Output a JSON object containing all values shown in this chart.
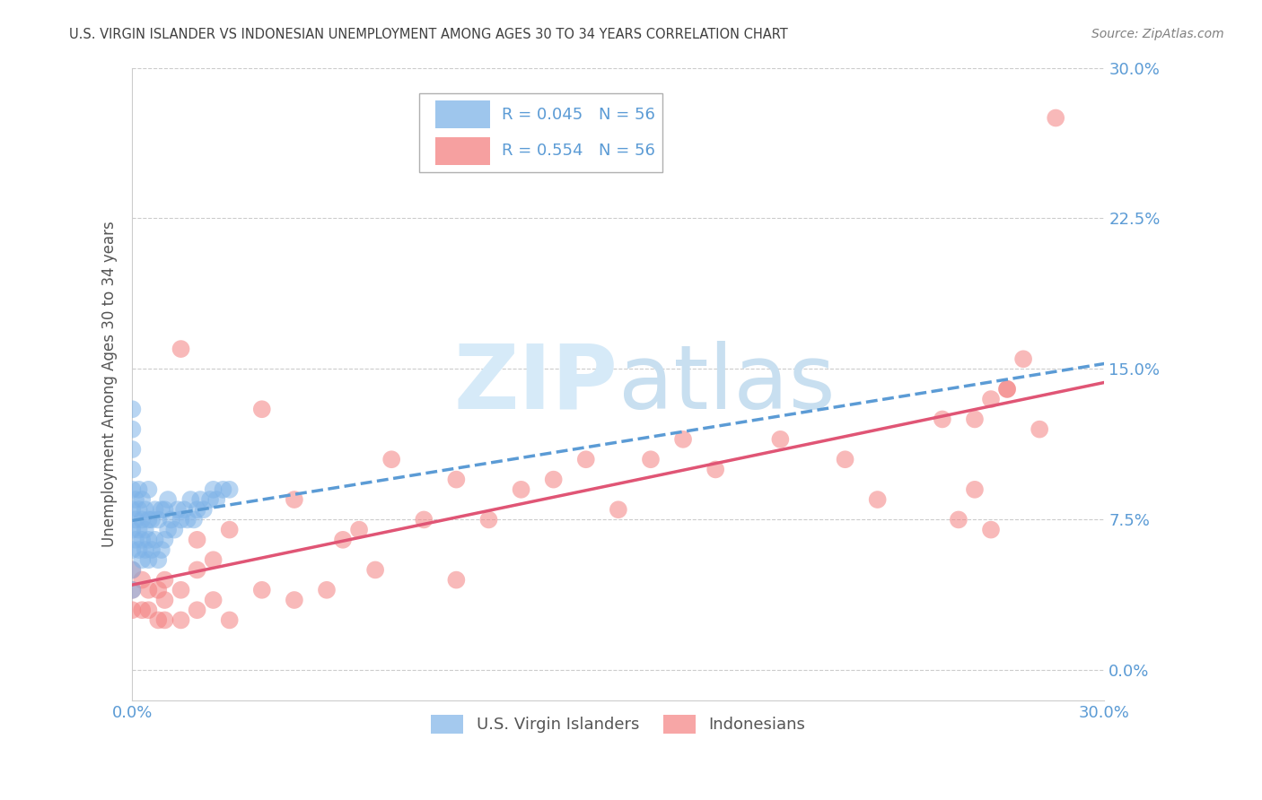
{
  "title": "U.S. VIRGIN ISLANDER VS INDONESIAN UNEMPLOYMENT AMONG AGES 30 TO 34 YEARS CORRELATION CHART",
  "source": "Source: ZipAtlas.com",
  "ylabel": "Unemployment Among Ages 30 to 34 years",
  "x_min": 0.0,
  "x_max": 0.3,
  "y_min": -0.015,
  "y_max": 0.3,
  "y_ticks": [
    0.0,
    0.075,
    0.15,
    0.225,
    0.3
  ],
  "y_tick_labels": [
    "0.0%",
    "7.5%",
    "15.0%",
    "22.5%",
    "30.0%"
  ],
  "x_tick_labels": [
    "0.0%",
    "30.0%"
  ],
  "grid_color": "#cccccc",
  "background_color": "#ffffff",
  "virgin_islander_color": "#7eb3e8",
  "indonesian_color": "#f48080",
  "virgin_islander_R": 0.045,
  "virgin_islander_N": 56,
  "indonesian_R": 0.554,
  "indonesian_N": 56,
  "legend_label_vi": "U.S. Virgin Islanders",
  "legend_label_indo": "Indonesians",
  "trendline_vi_color": "#5b9bd5",
  "trendline_indo_color": "#e05575",
  "watermark_color": "#d6eaf8",
  "title_color": "#404040",
  "source_color": "#808080",
  "axis_label_color": "#555555",
  "tick_color": "#5b9bd5",
  "vi_x": [
    0.0,
    0.0,
    0.0,
    0.0,
    0.0,
    0.0,
    0.0,
    0.0,
    0.0,
    0.0,
    0.001,
    0.001,
    0.001,
    0.002,
    0.002,
    0.002,
    0.002,
    0.003,
    0.003,
    0.003,
    0.003,
    0.004,
    0.004,
    0.004,
    0.005,
    0.005,
    0.005,
    0.005,
    0.006,
    0.006,
    0.007,
    0.007,
    0.008,
    0.008,
    0.009,
    0.009,
    0.01,
    0.01,
    0.011,
    0.011,
    0.012,
    0.013,
    0.014,
    0.015,
    0.016,
    0.017,
    0.018,
    0.019,
    0.02,
    0.021,
    0.022,
    0.024,
    0.025,
    0.026,
    0.028,
    0.03
  ],
  "vi_y": [
    0.05,
    0.06,
    0.07,
    0.08,
    0.09,
    0.1,
    0.11,
    0.12,
    0.13,
    0.04,
    0.065,
    0.075,
    0.085,
    0.06,
    0.07,
    0.08,
    0.09,
    0.055,
    0.065,
    0.075,
    0.085,
    0.06,
    0.07,
    0.08,
    0.055,
    0.065,
    0.075,
    0.09,
    0.06,
    0.075,
    0.065,
    0.08,
    0.055,
    0.075,
    0.06,
    0.08,
    0.065,
    0.08,
    0.07,
    0.085,
    0.075,
    0.07,
    0.08,
    0.075,
    0.08,
    0.075,
    0.085,
    0.075,
    0.08,
    0.085,
    0.08,
    0.085,
    0.09,
    0.085,
    0.09,
    0.09
  ],
  "indo_x": [
    0.0,
    0.0,
    0.0,
    0.003,
    0.003,
    0.005,
    0.005,
    0.008,
    0.008,
    0.01,
    0.01,
    0.01,
    0.015,
    0.015,
    0.015,
    0.02,
    0.02,
    0.02,
    0.025,
    0.025,
    0.03,
    0.03,
    0.04,
    0.04,
    0.05,
    0.05,
    0.06,
    0.065,
    0.07,
    0.075,
    0.08,
    0.09,
    0.1,
    0.1,
    0.11,
    0.12,
    0.13,
    0.14,
    0.15,
    0.16,
    0.17,
    0.18,
    0.2,
    0.22,
    0.23,
    0.25,
    0.255,
    0.26,
    0.265,
    0.27,
    0.26,
    0.265,
    0.27,
    0.275,
    0.28,
    0.285
  ],
  "indo_y": [
    0.03,
    0.04,
    0.05,
    0.03,
    0.045,
    0.03,
    0.04,
    0.025,
    0.04,
    0.025,
    0.035,
    0.045,
    0.025,
    0.04,
    0.16,
    0.03,
    0.05,
    0.065,
    0.035,
    0.055,
    0.025,
    0.07,
    0.04,
    0.13,
    0.035,
    0.085,
    0.04,
    0.065,
    0.07,
    0.05,
    0.105,
    0.075,
    0.045,
    0.095,
    0.075,
    0.09,
    0.095,
    0.105,
    0.08,
    0.105,
    0.115,
    0.1,
    0.115,
    0.105,
    0.085,
    0.125,
    0.075,
    0.125,
    0.07,
    0.14,
    0.09,
    0.135,
    0.14,
    0.155,
    0.12,
    0.275
  ]
}
